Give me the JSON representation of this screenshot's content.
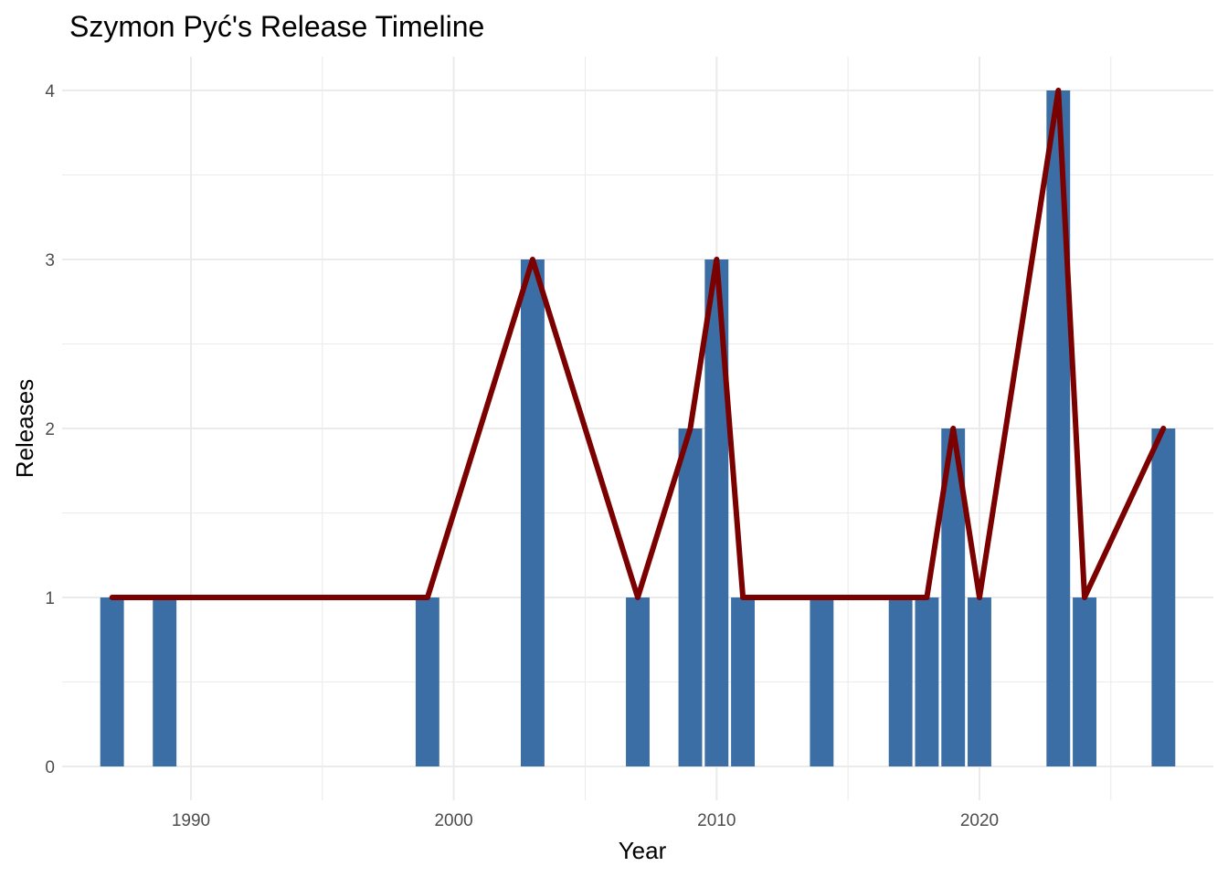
{
  "chart_data": {
    "type": "bar",
    "title": "Szymon Pyć's Release Timeline",
    "xlabel": "Year",
    "ylabel": "Releases",
    "x": [
      1987,
      1989,
      1999,
      2003,
      2007,
      2009,
      2010,
      2011,
      2014,
      2017,
      2018,
      2019,
      2020,
      2023,
      2024,
      2027
    ],
    "values": [
      1,
      1,
      1,
      3,
      1,
      2,
      3,
      1,
      1,
      1,
      1,
      2,
      1,
      4,
      1,
      2
    ],
    "xlim": [
      1985.1,
      2028.9
    ],
    "ylim": [
      -0.2,
      4.2
    ],
    "x_ticks": [
      1990,
      2000,
      2010,
      2020
    ],
    "y_ticks": [
      0,
      1,
      2,
      3,
      4
    ],
    "bar_color": "#3a6ea5",
    "line_color": "#7b0000",
    "overlay": "line connecting bar tops",
    "grid": true,
    "legend": "none"
  }
}
